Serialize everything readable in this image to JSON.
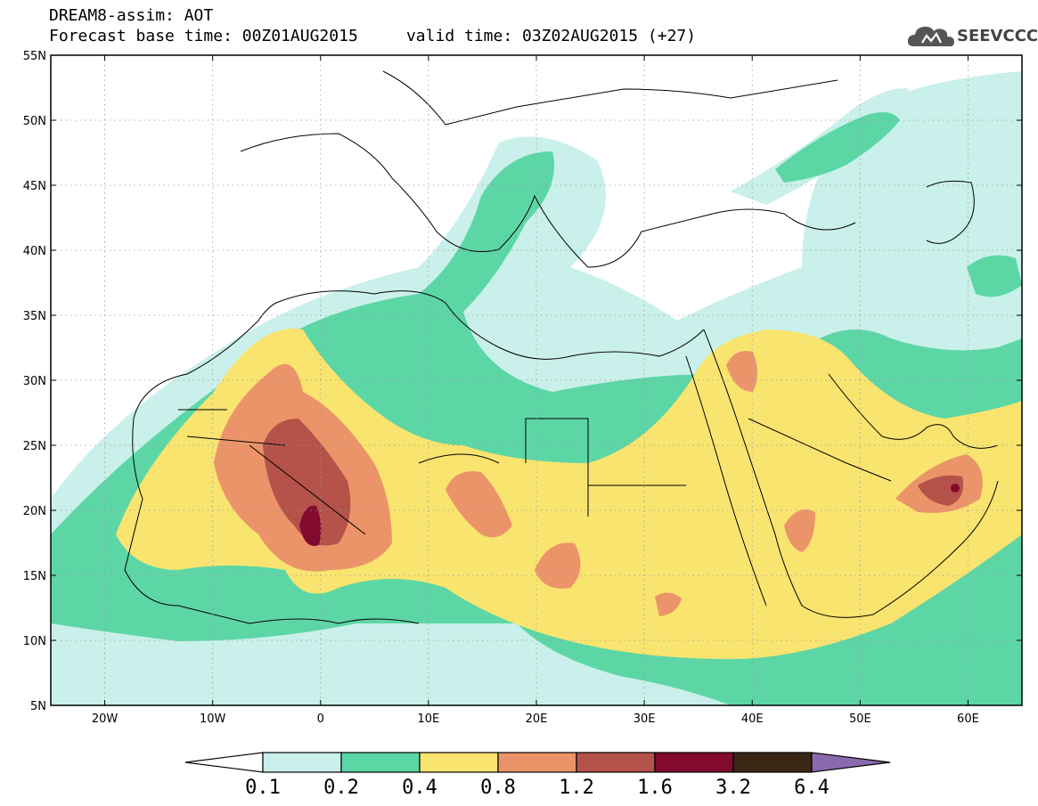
{
  "header": {
    "line1": "DREAM8-assim: AOT",
    "line2": "Forecast base time: 00Z01AUG2015     valid time: 03Z02AUG2015 (+27)"
  },
  "logo": {
    "text": "SEEVCCC",
    "icon": "cloud-icon"
  },
  "map": {
    "lon_range": [
      -25,
      65
    ],
    "lat_range": [
      5,
      55
    ],
    "x_ticks": [
      {
        "value": -20,
        "label": "20W"
      },
      {
        "value": -10,
        "label": "10W"
      },
      {
        "value": 0,
        "label": "0"
      },
      {
        "value": 10,
        "label": "10E"
      },
      {
        "value": 20,
        "label": "20E"
      },
      {
        "value": 30,
        "label": "30E"
      },
      {
        "value": 40,
        "label": "40E"
      },
      {
        "value": 50,
        "label": "50E"
      },
      {
        "value": 60,
        "label": "60E"
      }
    ],
    "y_ticks": [
      {
        "value": 5,
        "label": "5N"
      },
      {
        "value": 10,
        "label": "10N"
      },
      {
        "value": 15,
        "label": "15N"
      },
      {
        "value": 20,
        "label": "20N"
      },
      {
        "value": 25,
        "label": "25N"
      },
      {
        "value": 30,
        "label": "30N"
      },
      {
        "value": 35,
        "label": "35N"
      },
      {
        "value": 40,
        "label": "40N"
      },
      {
        "value": 45,
        "label": "45N"
      },
      {
        "value": 50,
        "label": "50N"
      },
      {
        "value": 55,
        "label": "55N"
      }
    ],
    "grid": true
  },
  "colorbar": {
    "levels": [
      "0.1",
      "0.2",
      "0.4",
      "0.8",
      "1.2",
      "1.6",
      "3.2",
      "6.4"
    ],
    "colors": [
      "#ffffff",
      "#c9f0ea",
      "#5dd6a6",
      "#f9e46f",
      "#ec9469",
      "#b5524a",
      "#820a2e",
      "#3a2615",
      "#8a6aae"
    ]
  }
}
